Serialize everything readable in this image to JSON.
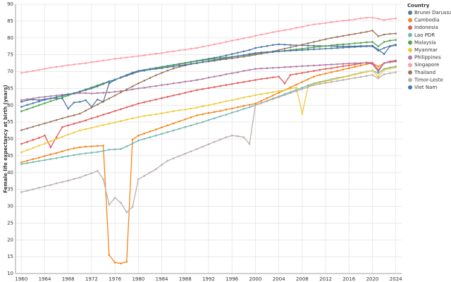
{
  "chart_data": {
    "type": "line",
    "y_label": "Female life expectancy at birth (years)",
    "legend_title": "Country",
    "legend": "right",
    "grid": true,
    "x": [
      1960,
      1961,
      1962,
      1963,
      1964,
      1965,
      1966,
      1967,
      1968,
      1969,
      1970,
      1971,
      1972,
      1973,
      1974,
      1975,
      1976,
      1977,
      1978,
      1979,
      1980,
      1981,
      1982,
      1983,
      1984,
      1985,
      1986,
      1987,
      1988,
      1989,
      1990,
      1991,
      1992,
      1993,
      1994,
      1995,
      1996,
      1997,
      1998,
      1999,
      2000,
      2001,
      2002,
      2003,
      2004,
      2005,
      2006,
      2007,
      2008,
      2009,
      2010,
      2011,
      2012,
      2013,
      2014,
      2015,
      2016,
      2017,
      2018,
      2019,
      2020,
      2021,
      2022,
      2023,
      2024
    ],
    "xlim": [
      1959,
      2025
    ],
    "xticks": [
      1960,
      1964,
      1968,
      1972,
      1976,
      1980,
      1984,
      1988,
      1992,
      1996,
      2000,
      2004,
      2008,
      2012,
      2016,
      2020,
      2024
    ],
    "ylim": [
      10,
      90
    ],
    "yticks": [
      10,
      15,
      20,
      25,
      30,
      35,
      40,
      45,
      50,
      55,
      60,
      65,
      70,
      75,
      80,
      85,
      90
    ],
    "series": [
      {
        "name": "Brunei Darussalam",
        "color": "#4c78a8",
        "values": [
          61,
          61.5,
          61.7,
          61.5,
          61.8,
          62,
          62.1,
          62,
          59,
          60.8,
          61,
          61.5,
          59.5,
          61.7,
          61,
          66.5,
          67.5,
          68.3,
          69,
          69.7,
          70.2,
          70.5,
          70.8,
          71.1,
          71.4,
          71.7,
          72,
          72.3,
          72.6,
          72.9,
          73.2,
          73.5,
          73.8,
          74.1,
          74.4,
          74.8,
          75.2,
          75.6,
          76,
          76.4,
          77,
          77.3,
          77.6,
          77.9,
          78.1,
          78,
          77.9,
          77.8,
          77.8,
          77.7,
          77.7,
          77.6,
          77.6,
          77.6,
          77.5,
          77.5,
          77.5,
          77.5,
          77.6,
          77.6,
          77.7,
          76.5,
          75.2,
          77.5,
          77.8
        ]
      },
      {
        "name": "Cambodia",
        "color": "#f58518",
        "values": [
          43,
          43.5,
          44,
          44.4,
          44.9,
          45.4,
          45.8,
          46.3,
          46.8,
          47.2,
          47.5,
          47.7,
          47.8,
          47.9,
          48,
          15.5,
          13.3,
          13,
          13.5,
          49.8,
          51,
          51.6,
          52.2,
          52.8,
          53.4,
          54,
          54.6,
          55.2,
          55.8,
          56.4,
          57,
          57.3,
          57.7,
          58,
          58.3,
          58.7,
          59,
          59.4,
          59.8,
          60.1,
          60.5,
          61.3,
          62.1,
          62.9,
          63.7,
          64.5,
          65.3,
          66.1,
          66.9,
          67.7,
          68.5,
          69,
          69.4,
          69.8,
          70.2,
          70.6,
          71,
          71.4,
          71.8,
          72.2,
          72.5,
          71.5,
          72.5,
          72.8,
          73
        ]
      },
      {
        "name": "Indonesia",
        "color": "#e45756",
        "values": [
          48.5,
          49.1,
          49.7,
          50.3,
          51,
          47.5,
          50.5,
          53.5,
          54,
          54.5,
          55,
          55.5,
          56.1,
          56.6,
          57.2,
          57.7,
          58.3,
          58.8,
          59.4,
          59.9,
          60.5,
          60.9,
          61.3,
          61.7,
          62.1,
          62.5,
          62.9,
          63.3,
          63.7,
          64.1,
          64.5,
          64.8,
          65.1,
          65.4,
          65.7,
          66,
          66.3,
          66.6,
          66.9,
          67.2,
          67.5,
          67.8,
          68,
          68.3,
          68.5,
          66.5,
          69,
          69.3,
          69.6,
          69.9,
          70.2,
          70.5,
          70.8,
          71,
          71.3,
          71.6,
          71.8,
          72.1,
          72.4,
          72.7,
          72.6,
          70.5,
          72.5,
          73,
          73.3
        ]
      },
      {
        "name": "Lao PDR",
        "color": "#72b7b2",
        "values": [
          42.5,
          42.8,
          43.1,
          43.4,
          43.7,
          44,
          44.3,
          44.6,
          44.9,
          45.2,
          45.5,
          45.7,
          45.9,
          46.1,
          46.4,
          46.8,
          46.9,
          47,
          47.8,
          48.6,
          49.5,
          50,
          50.5,
          51,
          51.5,
          52,
          52.5,
          53,
          53.5,
          54,
          54.5,
          55,
          55.6,
          56.1,
          56.7,
          57.2,
          57.8,
          58.3,
          58.9,
          59.4,
          60,
          60.7,
          61.3,
          62,
          62.6,
          63.3,
          63.9,
          64.6,
          65.2,
          65.9,
          66.5,
          66.9,
          67.3,
          67.7,
          68.1,
          68.4,
          68.8,
          69.2,
          69.6,
          70,
          70.3,
          69.5,
          70.8,
          71.2,
          71.5
        ]
      },
      {
        "name": "Malaysia",
        "color": "#54a24b",
        "values": [
          58.2,
          58.8,
          59.4,
          60,
          60.6,
          61.2,
          61.7,
          62.3,
          62.9,
          63.5,
          64.1,
          64.7,
          65.3,
          65.9,
          66.5,
          67.1,
          67.6,
          68.2,
          68.8,
          69.4,
          70,
          70.4,
          70.7,
          71,
          71.3,
          71.6,
          71.9,
          72.2,
          72.5,
          72.8,
          73.1,
          73.3,
          73.6,
          73.8,
          74,
          74.2,
          74.4,
          74.6,
          74.8,
          75,
          75.2,
          75.4,
          75.6,
          75.8,
          76,
          76.2,
          76.4,
          76.6,
          76.8,
          77,
          77.2,
          77.4,
          77.6,
          77.8,
          78,
          78.1,
          78.2,
          78.4,
          78.5,
          78.7,
          78.8,
          77.5,
          78.8,
          79.2,
          79.4
        ]
      },
      {
        "name": "Myanmar",
        "color": "#eeca3b",
        "values": [
          46,
          46.7,
          47.3,
          48,
          48.6,
          49.3,
          50,
          50.6,
          51.3,
          51.9,
          52.5,
          52.9,
          53.3,
          53.7,
          54.1,
          54.5,
          54.9,
          55.3,
          55.7,
          56.1,
          56.5,
          56.8,
          57.1,
          57.3,
          57.6,
          57.9,
          58.2,
          58.5,
          58.7,
          59,
          59.3,
          59.7,
          60,
          60.4,
          60.8,
          61.2,
          61.5,
          61.9,
          62.3,
          62.6,
          63,
          63.3,
          63.6,
          63.9,
          64.2,
          64.5,
          64.9,
          65.2,
          57.5,
          65.5,
          66.3,
          66.7,
          67.1,
          67.5,
          67.9,
          68.3,
          68.7,
          69.1,
          69.5,
          69.9,
          70.3,
          68.5,
          70.5,
          70.9,
          71.2
        ]
      },
      {
        "name": "Philippines",
        "color": "#b279a2",
        "values": [
          61.5,
          61.8,
          62,
          62.3,
          62.5,
          62.7,
          62.9,
          63.1,
          63.3,
          63.4,
          63.6,
          63.6,
          63.5,
          63.6,
          63.7,
          63.8,
          64,
          64.2,
          64.4,
          64.7,
          65,
          65.2,
          65.5,
          65.7,
          66,
          66.2,
          66.5,
          66.7,
          67,
          67.2,
          67.5,
          67.8,
          68.2,
          68.5,
          68.8,
          69.2,
          69.5,
          69.8,
          70.2,
          70.5,
          70.8,
          70.9,
          71,
          71.1,
          71.2,
          71.3,
          71.4,
          71.5,
          71.6,
          71.7,
          71.8,
          71.9,
          72,
          72.1,
          72.2,
          72.3,
          72.4,
          72.5,
          72.5,
          72.6,
          72.2,
          70,
          72.5,
          72.8,
          73
        ]
      },
      {
        "name": "Singapore",
        "color": "#ff9da6",
        "values": [
          69.6,
          69.9,
          70.2,
          70.5,
          70.8,
          71.1,
          71.4,
          71.6,
          71.9,
          72.1,
          72.3,
          72.5,
          72.8,
          73,
          73.3,
          73.5,
          73.8,
          74,
          74.2,
          74.4,
          74.6,
          74.8,
          75.1,
          75.3,
          75.5,
          75.8,
          76,
          76.3,
          76.5,
          76.8,
          77,
          77.4,
          77.7,
          78.1,
          78.4,
          78.8,
          79.2,
          79.5,
          79.9,
          80.2,
          80.6,
          81,
          81.3,
          81.7,
          82,
          82.3,
          82.6,
          83,
          83.3,
          83.7,
          84,
          84.2,
          84.4,
          84.7,
          84.9,
          85.1,
          85.3,
          85.5,
          85.8,
          86,
          86,
          85.7,
          85.3,
          85.6,
          85.8
        ]
      },
      {
        "name": "Thailand",
        "color": "#9d755d",
        "values": [
          52.6,
          53.1,
          53.6,
          54.1,
          54.6,
          55.1,
          55.6,
          56.1,
          56.6,
          57,
          57.5,
          58.4,
          59.3,
          60.2,
          61.1,
          62,
          62.9,
          63.8,
          64.7,
          65.6,
          66.5,
          67.3,
          68.1,
          68.9,
          69.6,
          70.3,
          70.9,
          71.4,
          71.8,
          72.2,
          72.5,
          72.8,
          73,
          73.2,
          73.5,
          73.7,
          73.9,
          74.2,
          74.4,
          74.7,
          75,
          75.3,
          75.6,
          76,
          76.4,
          76.8,
          77.2,
          77.6,
          78,
          78.4,
          78.8,
          79.2,
          79.6,
          80,
          80.3,
          80.6,
          80.9,
          81.2,
          81.5,
          81.8,
          82.2,
          80.5,
          81,
          81.2,
          81.3
        ]
      },
      {
        "name": "Timor-Leste",
        "color": "#bab0ac",
        "values": [
          34.2,
          34.6,
          35,
          35.5,
          35.9,
          36.3,
          36.8,
          37.2,
          37.6,
          38.1,
          38.5,
          39.2,
          39.8,
          40.5,
          38,
          30.5,
          32.5,
          31,
          28.2,
          29.8,
          38,
          39,
          40,
          41,
          42.3,
          43.5,
          44.2,
          44.9,
          45.6,
          46.3,
          47,
          47.7,
          48.4,
          49.1,
          49.8,
          50.5,
          51,
          50.8,
          50.5,
          48.5,
          60,
          60.6,
          61.2,
          61.8,
          62.4,
          63,
          63.6,
          64.2,
          64.8,
          65.4,
          66,
          66.3,
          66.6,
          66.9,
          67.2,
          67.5,
          67.8,
          68.1,
          68.4,
          68.7,
          69,
          68,
          69.2,
          69.5,
          69.8
        ]
      },
      {
        "name": "Viet Nam",
        "color": "#4c78a8",
        "values": [
          59.5,
          60.1,
          60.6,
          61.1,
          61.6,
          62,
          62.4,
          62.8,
          63.2,
          63.6,
          64,
          64.5,
          65,
          65.6,
          66.3,
          67,
          67.6,
          68.2,
          68.8,
          69.4,
          70,
          70.3,
          70.6,
          70.8,
          71,
          71.3,
          71.5,
          71.8,
          72,
          72.3,
          72.5,
          72.8,
          73.1,
          73.4,
          73.7,
          74,
          74.3,
          74.6,
          74.9,
          75.2,
          75.5,
          75.7,
          75.8,
          75.9,
          76,
          76.1,
          76.2,
          76.3,
          76.4,
          76.5,
          76.6,
          76.7,
          76.8,
          76.9,
          77,
          77.1,
          77.2,
          77.3,
          77.4,
          77.5,
          77.5,
          76.2,
          77,
          77.6,
          78
        ]
      }
    ]
  }
}
